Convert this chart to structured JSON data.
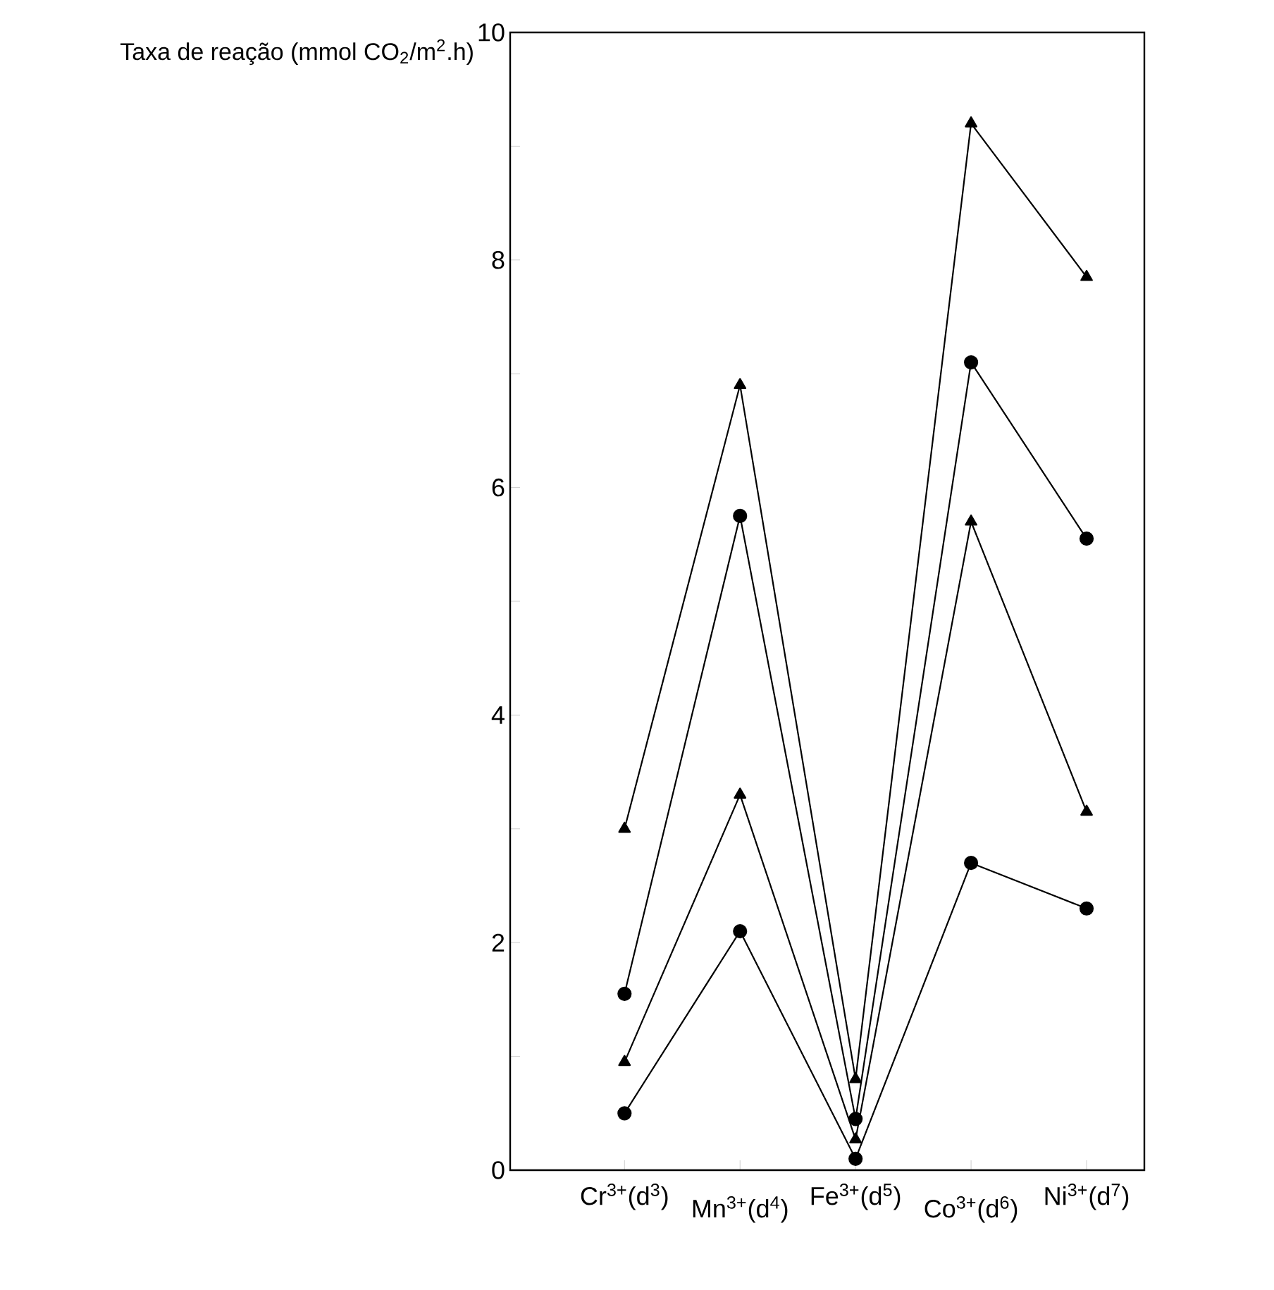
{
  "chart_data": {
    "type": "line",
    "ylabel": "Taxa de reação (mmol CO$_{2}$/m$^{2}$.h)",
    "categories": [
      "Cr$^{3+}$(d$^{3}$)",
      "Mn$^{3+}$(d$^{4}$)",
      "Fe$^{3+}$(d$^{5}$)",
      "Co$^{3+}$(d$^{6}$)",
      "Ni$^{3+}$(d$^{7}$)"
    ],
    "ylim": [
      0,
      10
    ],
    "yticks": [
      0,
      {
        "value": 1,
        "label": null
      },
      2,
      {
        "value": 3,
        "label": null
      },
      4,
      {
        "value": 5,
        "label": null
      },
      6,
      {
        "value": 7,
        "label": null
      },
      8,
      {
        "value": 9,
        "label": null
      },
      10
    ],
    "grid": false,
    "line_style": "solid",
    "series": [
      {
        "color": "#000000",
        "marker": "triangle",
        "values": [
          3.0,
          6.9,
          0.8,
          9.2,
          7.85
        ]
      },
      {
        "color": "#000000",
        "marker": "circle",
        "values": [
          1.55,
          5.75,
          0.45,
          7.1,
          5.55
        ]
      },
      {
        "color": "#000000",
        "marker": "triangle",
        "values": [
          0.95,
          3.3,
          0.27,
          5.7,
          3.15
        ]
      },
      {
        "color": "#000000",
        "marker": "circle",
        "values": [
          0.5,
          2.1,
          0.1,
          2.7,
          2.3
        ]
      }
    ]
  }
}
